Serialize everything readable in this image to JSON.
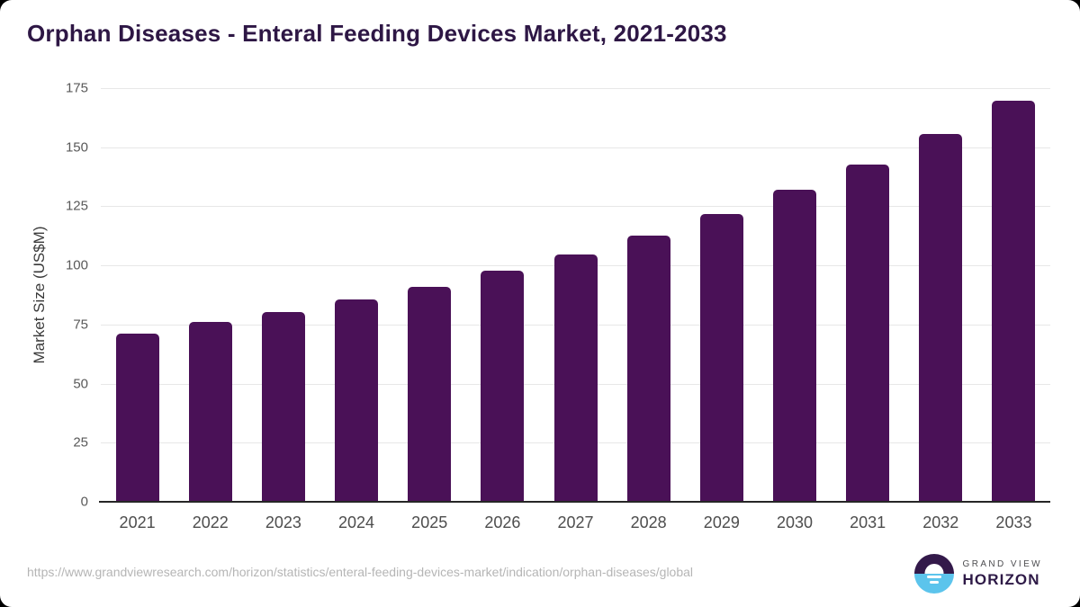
{
  "title": "Orphan Diseases - Enteral Feeding Devices Market, 2021-2033",
  "footer": {
    "source_url": "https://www.grandviewresearch.com/horizon/statistics/enteral-feeding-devices-market/indication/orphan-diseases/global"
  },
  "logo": {
    "line1": "GRAND VIEW",
    "line2": "HORIZON",
    "mark": "sunrise-horizon-circle-icon",
    "colors": {
      "top_half": "#33194a",
      "bottom_half": "#5cc4ec",
      "sun": "#ffffff"
    }
  },
  "colors": {
    "bar": "#4a1157",
    "title_text": "#2e1745",
    "grid": "#e7e7e7",
    "axis_line": "#262626",
    "y_tick_label": "#595959",
    "x_tick_label": "#4d4d4d",
    "url_text": "#b5b5b5",
    "background": "#ffffff"
  },
  "chart_data": {
    "type": "bar",
    "title": "Orphan Diseases - Enteral Feeding Devices Market, 2021-2033",
    "categories": [
      "2021",
      "2022",
      "2023",
      "2024",
      "2025",
      "2026",
      "2027",
      "2028",
      "2029",
      "2030",
      "2031",
      "2032",
      "2033"
    ],
    "values": [
      71.3,
      76.1,
      80.4,
      85.6,
      91.1,
      97.6,
      104.8,
      112.6,
      121.7,
      132.0,
      142.8,
      155.6,
      169.8
    ],
    "xlabel": "",
    "ylabel": "Market Size (US$M)",
    "ylim": [
      0,
      175
    ],
    "yticks": [
      0,
      25,
      50,
      75,
      100,
      125,
      150,
      175
    ],
    "grid": true,
    "legend": false,
    "bar_color": "#4a1157"
  }
}
